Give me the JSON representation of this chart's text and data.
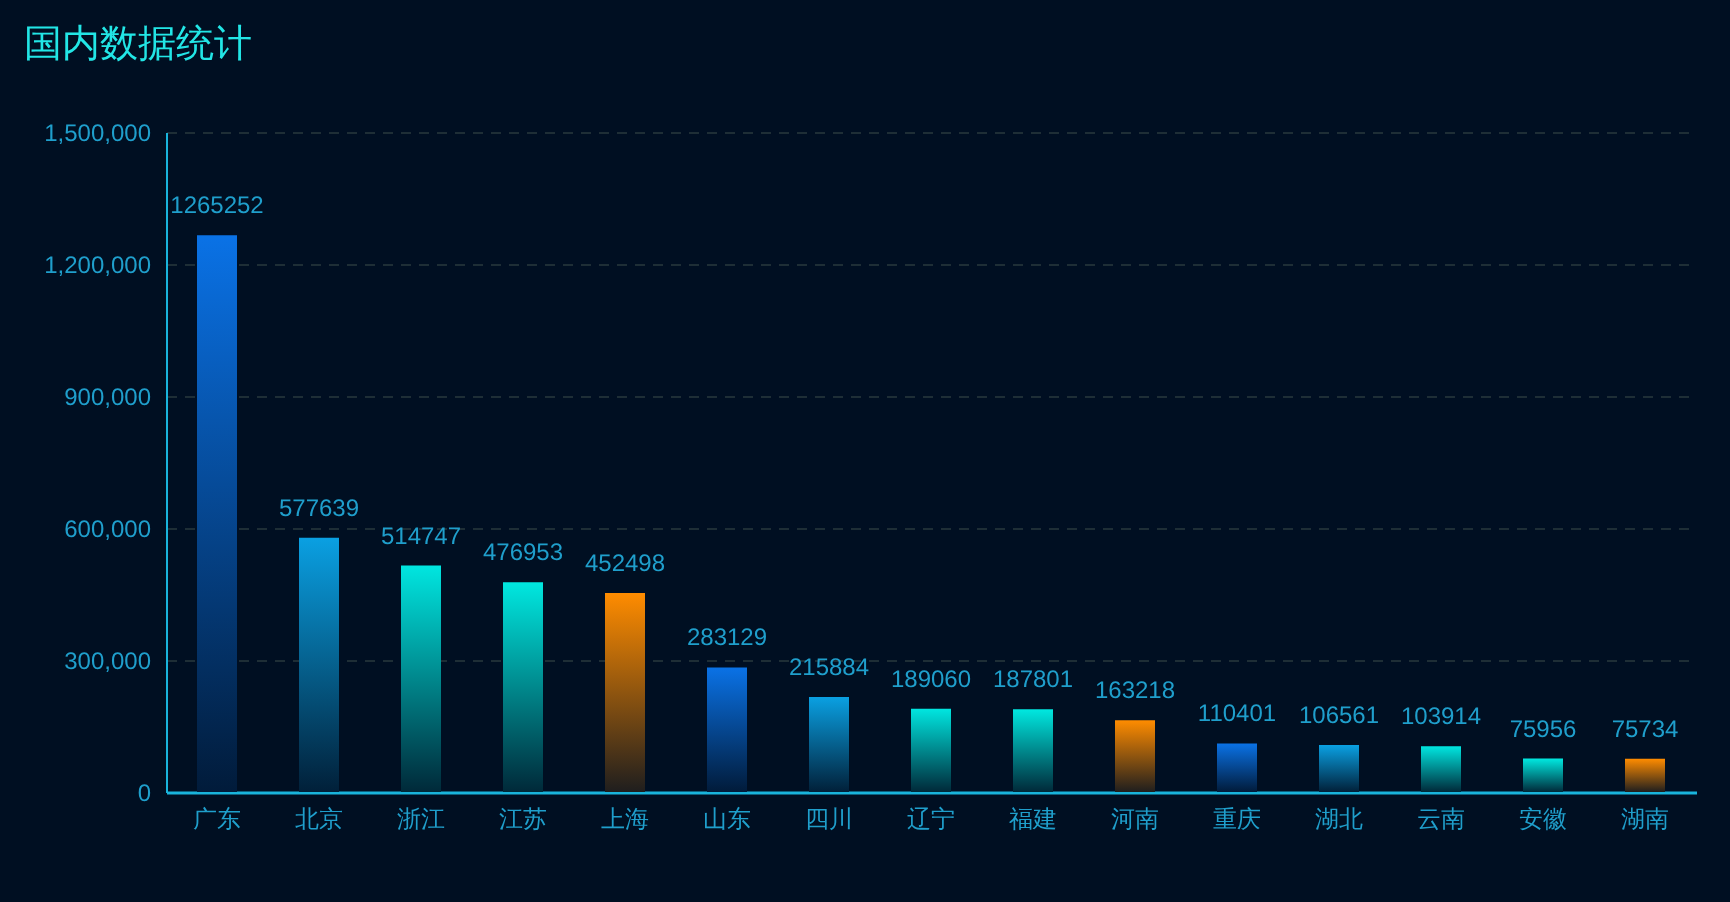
{
  "chart_data": {
    "type": "bar",
    "title": "国内数据统计",
    "categories": [
      "广东",
      "北京",
      "浙江",
      "江苏",
      "上海",
      "山东",
      "四川",
      "辽宁",
      "福建",
      "河南",
      "重庆",
      "湖北",
      "云南",
      "安徽",
      "湖南"
    ],
    "values": [
      1265252,
      577639,
      514747,
      476953,
      452498,
      283129,
      215884,
      189060,
      187801,
      163218,
      110401,
      106561,
      103914,
      75956,
      75734
    ],
    "colors": [
      "#0a72e6",
      "#0aa0e2",
      "#00e6e0",
      "#00e8e0",
      "#ff8c00",
      "#0a72e6",
      "#0aa0e2",
      "#00e6e0",
      "#00e8e0",
      "#ff8c00",
      "#0a72e6",
      "#0aa0e2",
      "#00e6e0",
      "#00e8e0",
      "#ff8c00"
    ],
    "ylim": [
      0,
      1500000
    ],
    "yticks": [
      0,
      {
        "value": 300000,
        "label": "300,000"
      },
      {
        "value": 600000,
        "label": "600,000"
      },
      {
        "value": 900000,
        "label": "900,000"
      },
      {
        "value": 1200000,
        "label": "1,200,000"
      },
      {
        "value": 1500000,
        "label": "1,500,000"
      }
    ],
    "grid": "y",
    "data_labels": true
  }
}
